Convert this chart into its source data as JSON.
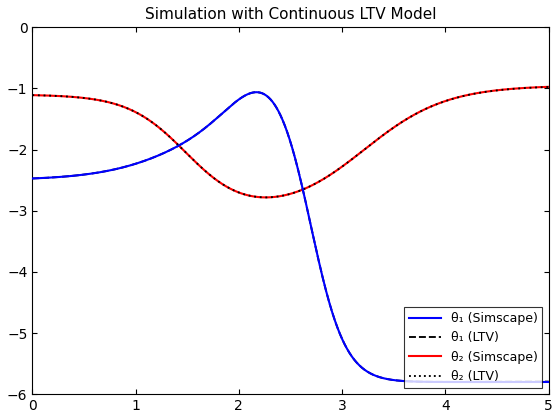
{
  "title": "Simulation with Continuous LTV Model",
  "xlim": [
    0,
    5
  ],
  "ylim": [
    -6,
    0
  ],
  "xticks": [
    0,
    1,
    2,
    3,
    4,
    5
  ],
  "yticks": [
    0,
    -1,
    -2,
    -3,
    -4,
    -5,
    -6
  ],
  "legend_labels": [
    "θ₁ (Simscape)",
    "θ₁ (LTV)",
    "θ₂ (Simscape)",
    "θ₂ (LTV)"
  ],
  "legend_loc": "lower right",
  "theta1_simscape_color": "#0000FF",
  "theta1_ltv_color": "#000000",
  "theta2_simscape_color": "#FF0000",
  "theta2_ltv_color": "#000000",
  "line_width": 1.5,
  "background_color": "#ffffff",
  "figsize": [
    5.6,
    4.2
  ],
  "dpi": 100,
  "title_fontsize": 11,
  "legend_fontsize": 9
}
